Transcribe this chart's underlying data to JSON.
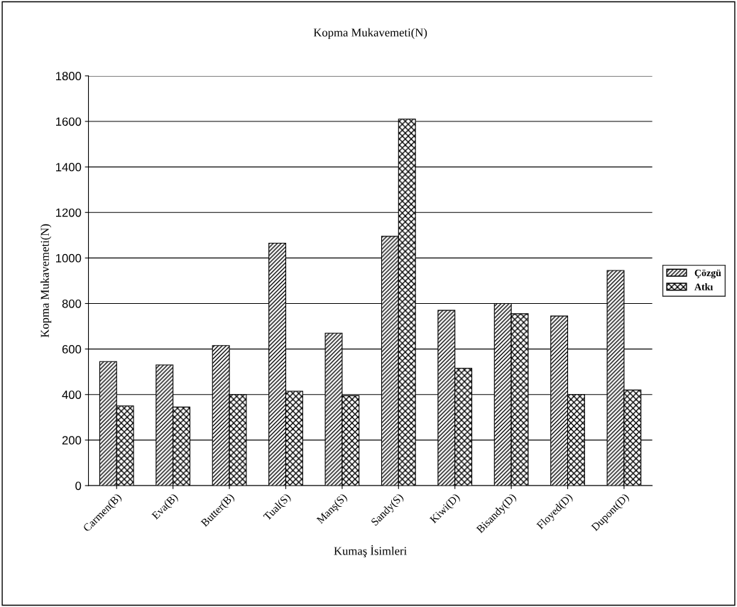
{
  "chart_data": {
    "type": "bar",
    "title": "Kopma Mukavemeti(N)",
    "xlabel": "Kumaş İsimleri",
    "ylabel": "Kopma Mukavemeti(N)",
    "categories": [
      "Carmen(B)",
      "Eva(B)",
      "Butter(B)",
      "Tual(S)",
      "Manş(S)",
      "Sandy(S)",
      "Kiwi(D)",
      "Bisandy(D)",
      "Floyed(D)",
      "Dupont(D)"
    ],
    "series": [
      {
        "name": "Çözgü",
        "color": "#000000",
        "values": [
          545,
          530,
          615,
          1065,
          670,
          1095,
          770,
          800,
          745,
          945
        ]
      },
      {
        "name": "Atkı",
        "color": "#000000",
        "values": [
          350,
          345,
          400,
          415,
          395,
          1610,
          515,
          755,
          400,
          420
        ]
      }
    ],
    "ylim": [
      0,
      1800
    ],
    "yticks": [
      0,
      200,
      400,
      600,
      800,
      1000,
      1200,
      1400,
      1600,
      1800
    ],
    "grid": "y",
    "legend": "right"
  }
}
